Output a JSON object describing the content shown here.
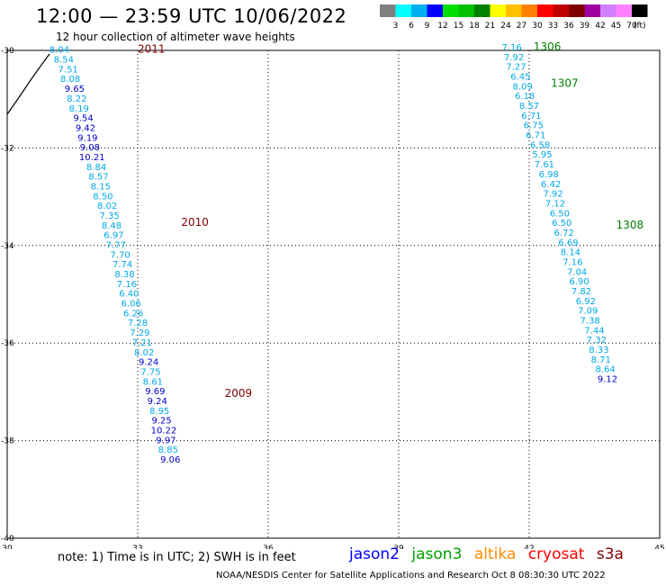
{
  "title": "12:00 — 23:59 UTC 10/06/2022",
  "subtitle": "12 hour collection of altimeter wave heights",
  "colorbar": {
    "labels": [
      "3",
      "6",
      "9",
      "12",
      "15",
      "18",
      "21",
      "24",
      "27",
      "30",
      "33",
      "36",
      "39",
      "42",
      "45",
      "70",
      "(ft)"
    ],
    "colors": [
      "#808080",
      "#00ffff",
      "#00b0f0",
      "#0000ff",
      "#00e000",
      "#00c000",
      "#008000",
      "#ffff00",
      "#ffc000",
      "#ff8000",
      "#ff0000",
      "#c00000",
      "#800000",
      "#a000a0",
      "#d080ff",
      "#ff80ff",
      "#000000"
    ]
  },
  "axes": {
    "y_ticks": [
      "-30",
      "-32",
      "-34",
      "-36",
      "-38",
      "-40"
    ],
    "x_ticks": [
      "30",
      "33",
      "36",
      "39",
      "42",
      "45"
    ]
  },
  "value_color_legend": {
    "cyan": "#00a8e8",
    "blue": "#0000cc"
  },
  "tracks": [
    {
      "pass_labels": [
        {
          "text": "2011",
          "color": "#800000",
          "lon": 33.0,
          "lat": -30.05
        },
        {
          "text": "2010",
          "color": "#800000",
          "lon": 34.0,
          "lat": -33.6
        },
        {
          "text": "2009",
          "color": "#800000",
          "lon": 35.0,
          "lat": -37.1
        }
      ],
      "points": [
        {
          "v": "8.04",
          "c": "c",
          "lon": 31.2,
          "lat": -30.05
        },
        {
          "v": "8.54",
          "c": "c",
          "lon": 31.3,
          "lat": -30.25
        },
        {
          "v": "7.51",
          "c": "c",
          "lon": 31.4,
          "lat": -30.45
        },
        {
          "v": "8.08",
          "c": "c",
          "lon": 31.45,
          "lat": -30.65
        },
        {
          "v": "9.65",
          "c": "b",
          "lon": 31.55,
          "lat": -30.85
        },
        {
          "v": "8.22",
          "c": "c",
          "lon": 31.6,
          "lat": -31.05
        },
        {
          "v": "8.19",
          "c": "c",
          "lon": 31.65,
          "lat": -31.25
        },
        {
          "v": "9.54",
          "c": "b",
          "lon": 31.75,
          "lat": -31.45
        },
        {
          "v": "9.42",
          "c": "b",
          "lon": 31.8,
          "lat": -31.65
        },
        {
          "v": "9.19",
          "c": "b",
          "lon": 31.85,
          "lat": -31.85
        },
        {
          "v": "9.08",
          "c": "b",
          "lon": 31.9,
          "lat": -32.05
        },
        {
          "v": "10.21",
          "c": "b",
          "lon": 31.95,
          "lat": -32.25
        },
        {
          "v": "8.84",
          "c": "c",
          "lon": 32.05,
          "lat": -32.45
        },
        {
          "v": "8.57",
          "c": "c",
          "lon": 32.1,
          "lat": -32.65
        },
        {
          "v": "8.15",
          "c": "c",
          "lon": 32.15,
          "lat": -32.85
        },
        {
          "v": "8.50",
          "c": "c",
          "lon": 32.2,
          "lat": -33.05
        },
        {
          "v": "8.02",
          "c": "c",
          "lon": 32.3,
          "lat": -33.25
        },
        {
          "v": "7.35",
          "c": "c",
          "lon": 32.35,
          "lat": -33.45
        },
        {
          "v": "8.48",
          "c": "c",
          "lon": 32.4,
          "lat": -33.65
        },
        {
          "v": "6.97",
          "c": "c",
          "lon": 32.45,
          "lat": -33.85
        },
        {
          "v": "7.77",
          "c": "c",
          "lon": 32.5,
          "lat": -34.05
        },
        {
          "v": "7.70",
          "c": "c",
          "lon": 32.6,
          "lat": -34.25
        },
        {
          "v": "7.74",
          "c": "c",
          "lon": 32.65,
          "lat": -34.45
        },
        {
          "v": "8.38",
          "c": "c",
          "lon": 32.7,
          "lat": -34.65
        },
        {
          "v": "7.16",
          "c": "c",
          "lon": 32.75,
          "lat": -34.85
        },
        {
          "v": "6.40",
          "c": "c",
          "lon": 32.8,
          "lat": -35.05
        },
        {
          "v": "6.06",
          "c": "c",
          "lon": 32.85,
          "lat": -35.25
        },
        {
          "v": "6.26",
          "c": "c",
          "lon": 32.9,
          "lat": -35.45
        },
        {
          "v": "7.28",
          "c": "c",
          "lon": 33.0,
          "lat": -35.65
        },
        {
          "v": "7.29",
          "c": "c",
          "lon": 33.05,
          "lat": -35.85
        },
        {
          "v": "7.21",
          "c": "c",
          "lon": 33.1,
          "lat": -36.05
        },
        {
          "v": "8.02",
          "c": "c",
          "lon": 33.15,
          "lat": -36.25
        },
        {
          "v": "9.24",
          "c": "b",
          "lon": 33.25,
          "lat": -36.45
        },
        {
          "v": "7.75",
          "c": "c",
          "lon": 33.3,
          "lat": -36.65
        },
        {
          "v": "8.61",
          "c": "c",
          "lon": 33.35,
          "lat": -36.85
        },
        {
          "v": "9.69",
          "c": "b",
          "lon": 33.4,
          "lat": -37.05
        },
        {
          "v": "9.24",
          "c": "b",
          "lon": 33.45,
          "lat": -37.25
        },
        {
          "v": "8.95",
          "c": "c",
          "lon": 33.5,
          "lat": -37.45
        },
        {
          "v": "9.25",
          "c": "b",
          "lon": 33.55,
          "lat": -37.65
        },
        {
          "v": "10.22",
          "c": "b",
          "lon": 33.6,
          "lat": -37.85
        },
        {
          "v": "9.97",
          "c": "b",
          "lon": 33.65,
          "lat": -38.05
        },
        {
          "v": "8.85",
          "c": "c",
          "lon": 33.7,
          "lat": -38.25
        },
        {
          "v": "9.06",
          "c": "b",
          "lon": 33.75,
          "lat": -38.45
        }
      ]
    },
    {
      "pass_labels": [
        {
          "text": "1306",
          "color": "#008000",
          "lon": 42.1,
          "lat": -30.0
        },
        {
          "text": "1307",
          "color": "#008000",
          "lon": 42.5,
          "lat": -30.75
        },
        {
          "text": "1308",
          "color": "#008000",
          "lon": 44.0,
          "lat": -33.65
        }
      ],
      "points": [
        {
          "v": "7.16",
          "c": "c",
          "lon": 41.6,
          "lat": -30.0
        },
        {
          "v": "7.92",
          "c": "c",
          "lon": 41.65,
          "lat": -30.2
        },
        {
          "v": "7.27",
          "c": "c",
          "lon": 41.7,
          "lat": -30.4
        },
        {
          "v": "6.45",
          "c": "c",
          "lon": 41.8,
          "lat": -30.6
        },
        {
          "v": "8.09",
          "c": "c",
          "lon": 41.85,
          "lat": -30.8
        },
        {
          "v": "6.18",
          "c": "c",
          "lon": 41.9,
          "lat": -31.0
        },
        {
          "v": "8.57",
          "c": "c",
          "lon": 42.0,
          "lat": -31.2
        },
        {
          "v": "6.71",
          "c": "c",
          "lon": 42.05,
          "lat": -31.4
        },
        {
          "v": "6.75",
          "c": "c",
          "lon": 42.1,
          "lat": -31.6
        },
        {
          "v": "6.71",
          "c": "c",
          "lon": 42.15,
          "lat": -31.8
        },
        {
          "v": "6.58",
          "c": "c",
          "lon": 42.25,
          "lat": -32.0
        },
        {
          "v": "5.95",
          "c": "c",
          "lon": 42.3,
          "lat": -32.2
        },
        {
          "v": "7.61",
          "c": "c",
          "lon": 42.35,
          "lat": -32.4
        },
        {
          "v": "6.98",
          "c": "c",
          "lon": 42.45,
          "lat": -32.6
        },
        {
          "v": "6.42",
          "c": "c",
          "lon": 42.5,
          "lat": -32.8
        },
        {
          "v": "7.92",
          "c": "c",
          "lon": 42.55,
          "lat": -33.0
        },
        {
          "v": "7.12",
          "c": "c",
          "lon": 42.6,
          "lat": -33.2
        },
        {
          "v": "6.50",
          "c": "c",
          "lon": 42.7,
          "lat": -33.4
        },
        {
          "v": "6.50",
          "c": "c",
          "lon": 42.75,
          "lat": -33.6
        },
        {
          "v": "6.72",
          "c": "c",
          "lon": 42.8,
          "lat": -33.8
        },
        {
          "v": "6.69",
          "c": "c",
          "lon": 42.9,
          "lat": -34.0
        },
        {
          "v": "8.14",
          "c": "c",
          "lon": 42.95,
          "lat": -34.2
        },
        {
          "v": "7.16",
          "c": "c",
          "lon": 43.0,
          "lat": -34.4
        },
        {
          "v": "7.04",
          "c": "c",
          "lon": 43.1,
          "lat": -34.6
        },
        {
          "v": "6.90",
          "c": "c",
          "lon": 43.15,
          "lat": -34.8
        },
        {
          "v": "7.82",
          "c": "c",
          "lon": 43.2,
          "lat": -35.0
        },
        {
          "v": "6.92",
          "c": "c",
          "lon": 43.3,
          "lat": -35.2
        },
        {
          "v": "7.09",
          "c": "c",
          "lon": 43.35,
          "lat": -35.4
        },
        {
          "v": "7.38",
          "c": "c",
          "lon": 43.4,
          "lat": -35.6
        },
        {
          "v": "7.44",
          "c": "c",
          "lon": 43.5,
          "lat": -35.8
        },
        {
          "v": "7.32",
          "c": "c",
          "lon": 43.55,
          "lat": -36.0
        },
        {
          "v": "8.33",
          "c": "c",
          "lon": 43.6,
          "lat": -36.2
        },
        {
          "v": "8.71",
          "c": "c",
          "lon": 43.65,
          "lat": -36.4
        },
        {
          "v": "8.64",
          "c": "c",
          "lon": 43.75,
          "lat": -36.6
        },
        {
          "v": "9.12",
          "c": "b",
          "lon": 43.8,
          "lat": -36.8
        }
      ]
    }
  ],
  "note": "note:  1) Time is in UTC; 2) SWH is in feet",
  "legend": [
    {
      "name": "jason2",
      "color": "#0000ff"
    },
    {
      "name": "jason3",
      "color": "#00a000"
    },
    {
      "name": "altika",
      "color": "#ff8c00"
    },
    {
      "name": "cryosat",
      "color": "#ff0000"
    },
    {
      "name": "s3a",
      "color": "#800000"
    }
  ],
  "credit": "NOAA/NESDIS Center for Satellite Applications and Research    Oct  8 08:30:30 UTC 2022"
}
